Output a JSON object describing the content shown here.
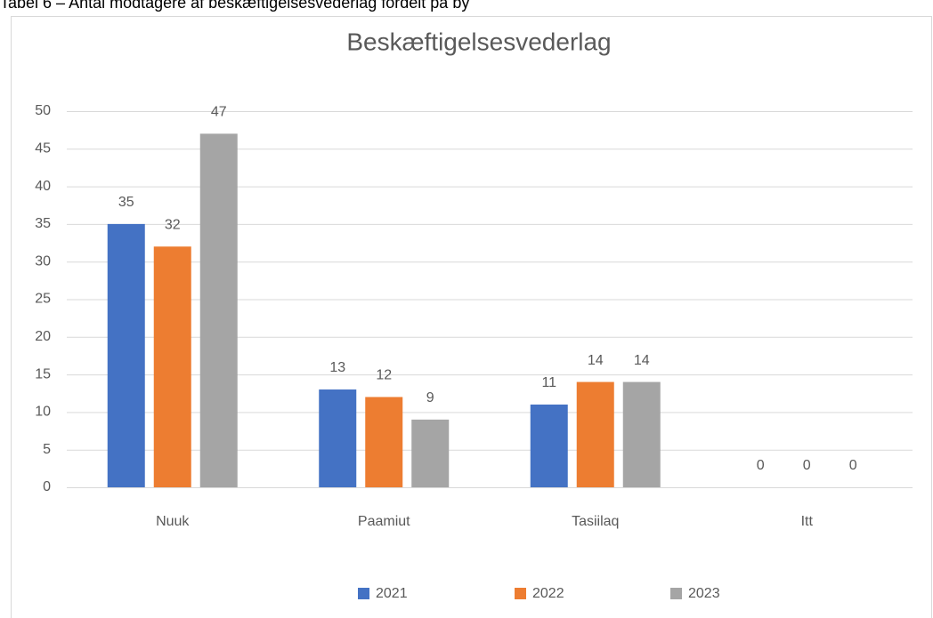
{
  "chart_data": {
    "type": "bar",
    "caption": "Tabel 6 – Antal modtagere af beskæftigelsesvederlag fordelt på by",
    "title": "Beskæftigelsesvederlag",
    "categories": [
      "Nuuk",
      "Paamiut",
      "Tasiilaq",
      "Itt"
    ],
    "series": [
      {
        "name": "2021",
        "color": "#4472c4",
        "values": [
          35,
          13,
          11,
          0
        ]
      },
      {
        "name": "2022",
        "color": "#ed7d31",
        "values": [
          32,
          12,
          14,
          0
        ]
      },
      {
        "name": "2023",
        "color": "#a5a5a5",
        "values": [
          47,
          9,
          14,
          0
        ]
      }
    ],
    "ylim": [
      0,
      50
    ],
    "yticks": [
      0,
      5,
      10,
      15,
      20,
      25,
      30,
      35,
      40,
      45,
      50
    ],
    "grid": true,
    "legend": "bottom"
  }
}
